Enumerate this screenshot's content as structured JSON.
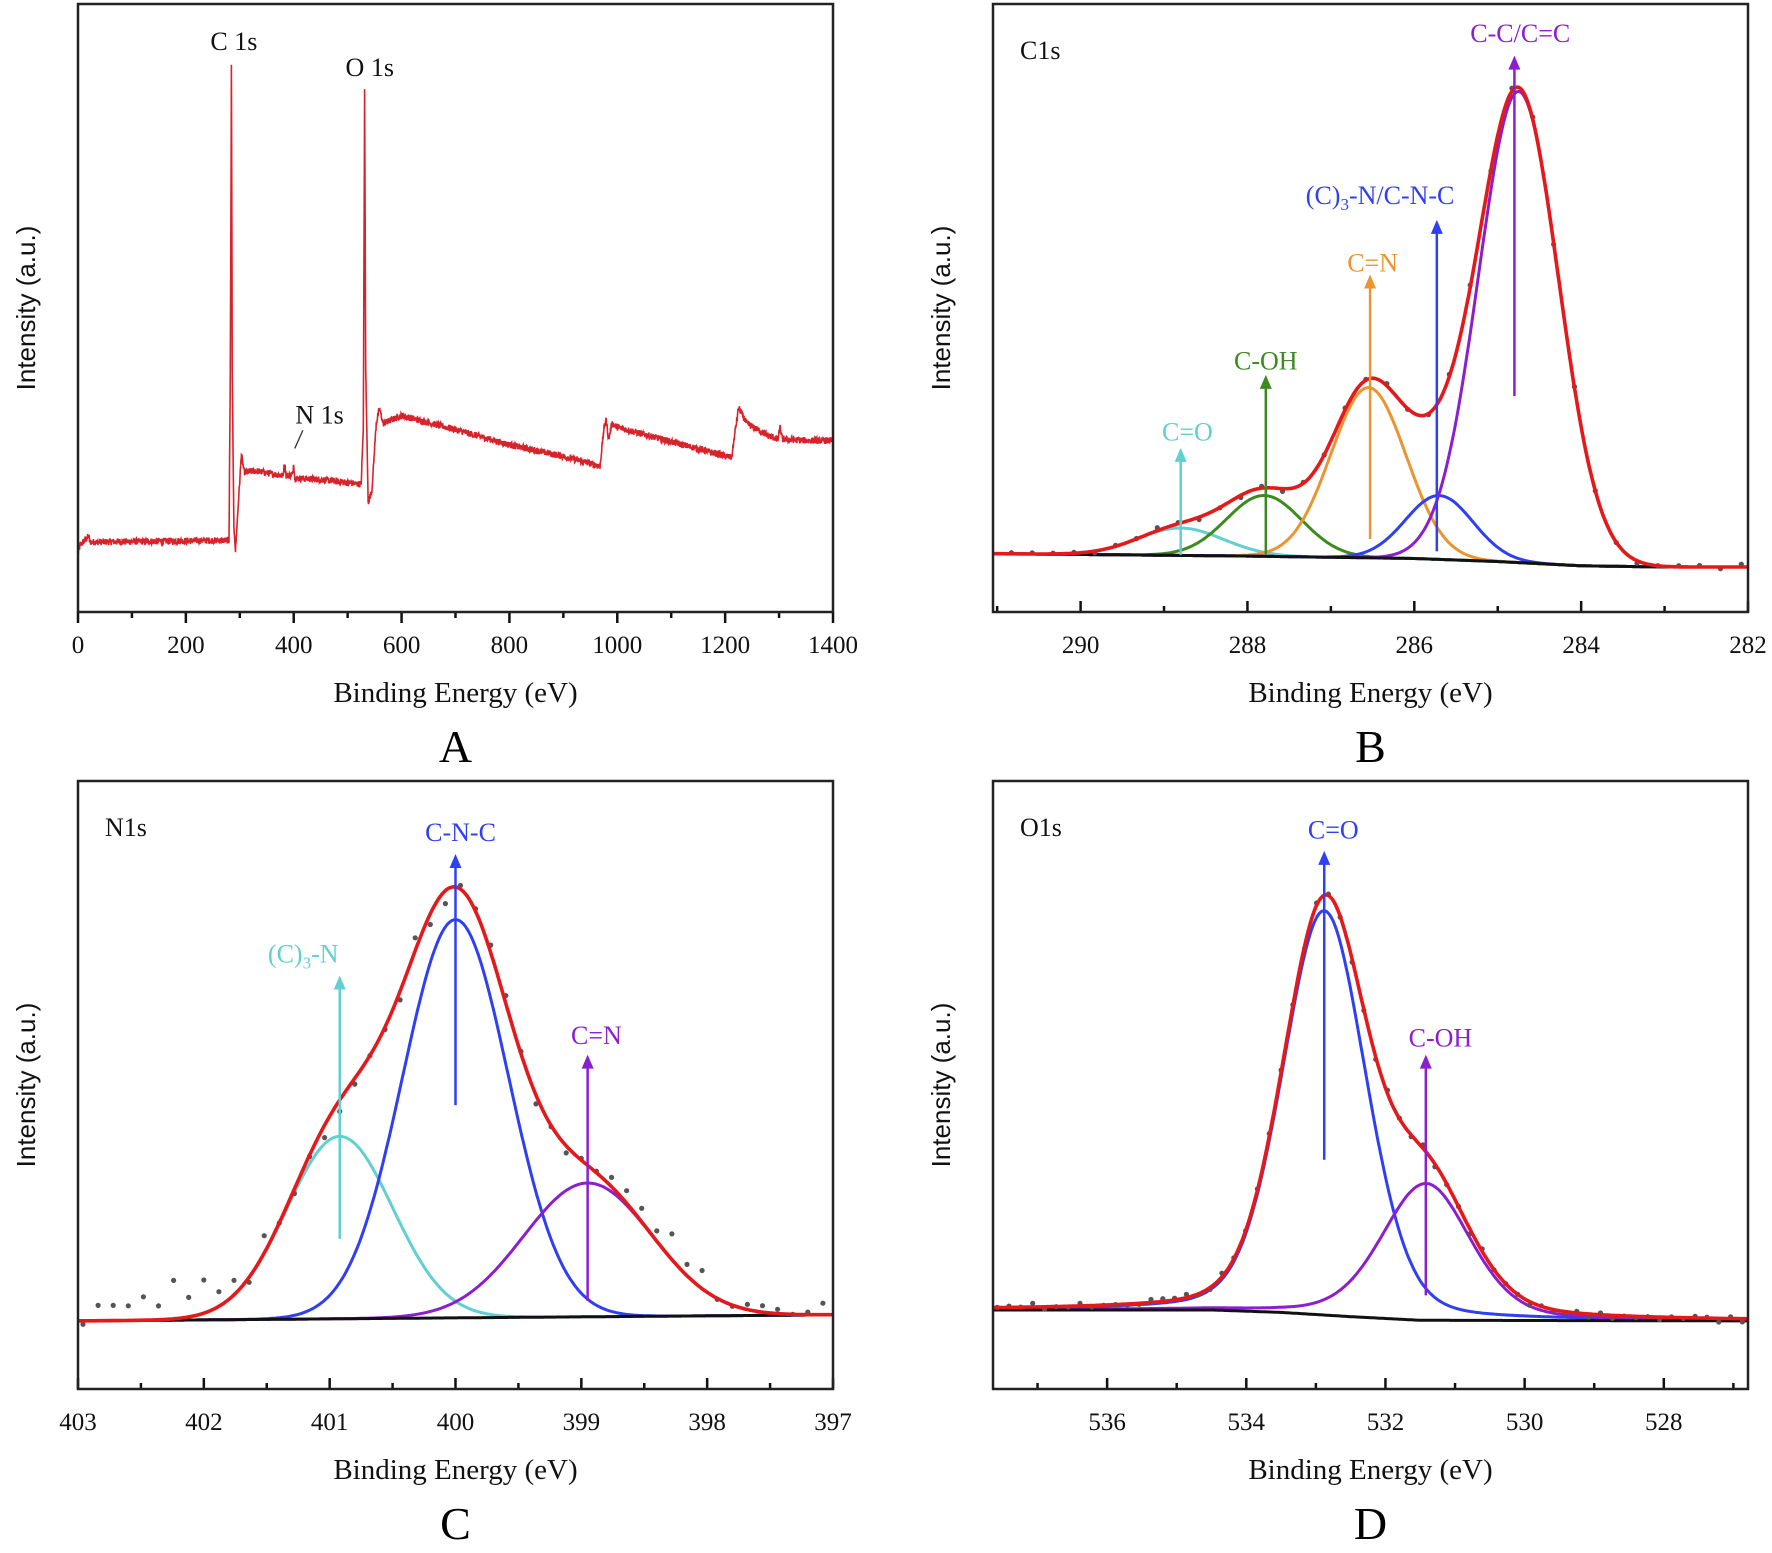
{
  "figure": {
    "panel_letters": [
      "A",
      "B",
      "C",
      "D"
    ],
    "colors": {
      "envelope": "#e3191c",
      "survey": "#d6232c",
      "baseline": "#111111",
      "data_points": "#555555",
      "cyan": "#62cfd0",
      "green": "#3d8a1e",
      "orange": "#ea9530",
      "blue": "#2f3ff2",
      "purple": "#8b1fcf"
    }
  },
  "chart_data": [
    {
      "panel": "A",
      "type": "line",
      "title": "",
      "xlabel": "Binding Energy (eV)",
      "ylabel": "Intensity (a.u.)",
      "xlim": [
        0,
        1400
      ],
      "ylim": [
        0,
        100
      ],
      "xticks": [
        0,
        200,
        400,
        600,
        800,
        1000,
        1200,
        1400
      ],
      "minor_step": 100,
      "grid": false,
      "series": [
        {
          "name": "Survey spectrum",
          "color_key": "survey",
          "keyframes": [
            [
              0,
              9.5
            ],
            [
              4,
              11
            ],
            [
              20,
              12.5
            ],
            [
              22,
              11.5
            ],
            [
              280,
              11.8
            ],
            [
              282.5,
              40
            ],
            [
              284.5,
              90
            ],
            [
              286,
              40
            ],
            [
              289,
              14
            ],
            [
              292,
              10
            ],
            [
              296,
              16
            ],
            [
              303,
              26
            ],
            [
              308,
              23
            ],
            [
              330,
              23.2
            ],
            [
              380,
              22.4
            ],
            [
              383,
              24.5
            ],
            [
              386,
              22.4
            ],
            [
              398,
              22.6
            ],
            [
              400,
              24.5
            ],
            [
              402,
              22
            ],
            [
              450,
              21.8
            ],
            [
              525,
              21
            ],
            [
              529,
              30
            ],
            [
              531.5,
              86
            ],
            [
              533.5,
              40
            ],
            [
              538,
              18
            ],
            [
              545,
              20
            ],
            [
              553,
              31
            ],
            [
              559,
              33.5
            ],
            [
              566,
              31
            ],
            [
              600,
              32.3
            ],
            [
              700,
              30
            ],
            [
              800,
              27.5
            ],
            [
              900,
              25.6
            ],
            [
              968,
              24
            ],
            [
              975,
              30
            ],
            [
              979,
              31.8
            ],
            [
              984,
              28.4
            ],
            [
              990,
              31
            ],
            [
              1000,
              30.4
            ],
            [
              1100,
              28
            ],
            [
              1212,
              25.4
            ],
            [
              1219,
              30
            ],
            [
              1225,
              33.6
            ],
            [
              1240,
              31
            ],
            [
              1280,
              29
            ],
            [
              1298,
              28.4
            ],
            [
              1302,
              30.4
            ],
            [
              1306,
              28.4
            ],
            [
              1350,
              28.2
            ]
          ]
        }
      ],
      "annotations": [
        {
          "text": "C 1s",
          "x": 289,
          "y": 93.9
        },
        {
          "text": "O 1s",
          "x": 541,
          "y": 89.6
        },
        {
          "text": "N 1s",
          "x": 448,
          "y": 32.5,
          "leader": [
            [
              417,
              29.9
            ],
            [
              402,
              26.9
            ]
          ]
        }
      ]
    },
    {
      "panel": "B",
      "type": "line",
      "title": "C1s",
      "xlabel": "Binding Energy (eV)",
      "ylabel": "Intensity (a.u.)",
      "xlim": [
        291.05,
        282
      ],
      "ylim": [
        0,
        100
      ],
      "xticks": [
        290,
        288,
        286,
        284,
        282
      ],
      "minor_step": 1,
      "grid": false,
      "baseline": [
        [
          291.05,
          9.6
        ],
        [
          288,
          9.2
        ],
        [
          286,
          8.8
        ],
        [
          285,
          8.3
        ],
        [
          284,
          7.6
        ],
        [
          283,
          7.4
        ],
        [
          282,
          7.4
        ]
      ],
      "components": [
        {
          "name": "C=O",
          "center": 288.8,
          "amplitude": 4.5,
          "fwhm": 1.2,
          "lorentz": 0,
          "color_key": "cyan"
        },
        {
          "name": "C-OH",
          "center": 287.8,
          "amplitude": 10,
          "fwhm": 1.06,
          "lorentz": 0,
          "color_key": "green"
        },
        {
          "name": "C=N",
          "center": 286.55,
          "amplitude": 28,
          "fwhm": 1.06,
          "lorentz": 0,
          "color_key": "orange"
        },
        {
          "name": "(C)3-N/C-N-C",
          "center": 285.7,
          "amplitude": 10.5,
          "fwhm": 0.95,
          "lorentz": 0,
          "color_key": "blue"
        },
        {
          "name": "C-C/C=C",
          "center": 284.75,
          "amplitude": 77.5,
          "fwhm": 1.13,
          "lorentz": 0,
          "color_key": "purple"
        }
      ],
      "data_step": 0.25,
      "noise": 0.5,
      "annotations": [
        {
          "label_parts": [
            {
              "t": "C=O"
            }
          ],
          "x": 288.72,
          "y": 29.7,
          "arrow": [
            288.8,
            9.4,
            27.0
          ],
          "color_key": "cyan"
        },
        {
          "label_parts": [
            {
              "t": "C-OH"
            }
          ],
          "x": 287.78,
          "y": 41.4,
          "arrow": [
            287.78,
            9.5,
            39.0
          ],
          "color_key": "green"
        },
        {
          "label_parts": [
            {
              "t": "C=N"
            }
          ],
          "x": 286.5,
          "y": 57.5,
          "arrow": [
            286.53,
            12,
            55.5
          ],
          "color_key": "orange"
        },
        {
          "label_parts": [
            {
              "t": "(C)"
            },
            {
              "t": "3",
              "sub": true
            },
            {
              "t": "-N/C-N-C"
            }
          ],
          "x": 286.41,
          "y": 68.6,
          "arrow": [
            285.73,
            10,
            64.5
          ],
          "color_key": "blue"
        },
        {
          "label_parts": [
            {
              "t": "C-C/C=C"
            }
          ],
          "x": 284.73,
          "y": 95.2,
          "arrow": [
            284.8,
            35.5,
            91.5
          ],
          "color_key": "purple"
        }
      ]
    },
    {
      "panel": "C",
      "type": "line",
      "title": "N1s",
      "xlabel": "Binding Energy (eV)",
      "ylabel": "Intensity (a.u.)",
      "xlim": [
        403,
        397
      ],
      "ylim": [
        0,
        100
      ],
      "xticks": [
        403,
        402,
        401,
        400,
        399,
        398,
        397
      ],
      "minor_step": 0.5,
      "grid": false,
      "baseline": [
        [
          403,
          11.2
        ],
        [
          397,
          12.2
        ]
      ],
      "components": [
        {
          "name": "(C)3-N",
          "center": 400.92,
          "amplitude": 30,
          "fwhm": 0.99,
          "lorentz": 0,
          "color_key": "cyan"
        },
        {
          "name": "C-N-C",
          "center": 400.0,
          "amplitude": 65.5,
          "fwhm": 0.99,
          "lorentz": 0,
          "color_key": "blue"
        },
        {
          "name": "C=N",
          "center": 398.95,
          "amplitude": 22,
          "fwhm": 1.2,
          "lorentz": 0,
          "color_key": "purple"
        }
      ],
      "data_step": 0.12,
      "noise": 2.2,
      "annotations": [
        {
          "label_parts": [
            {
              "t": "(C)"
            },
            {
              "t": "3",
              "sub": true
            },
            {
              "t": "-N"
            }
          ],
          "x": 401.21,
          "y": 71.6,
          "arrow": [
            400.92,
            24.7,
            68.0
          ],
          "color_key": "cyan"
        },
        {
          "label_parts": [
            {
              "t": "C-N-C"
            }
          ],
          "x": 399.96,
          "y": 91.6,
          "arrow": [
            400.0,
            46.7,
            88.0
          ],
          "color_key": "blue"
        },
        {
          "label_parts": [
            {
              "t": "C=N"
            }
          ],
          "x": 398.88,
          "y": 58.2,
          "arrow": [
            398.95,
            14.5,
            55.0
          ],
          "color_key": "purple"
        }
      ]
    },
    {
      "panel": "D",
      "type": "line",
      "title": "O1s",
      "xlabel": "Binding Energy (eV)",
      "ylabel": "Intensity (a.u.)",
      "xlim": [
        537.64,
        526.79
      ],
      "ylim": [
        0,
        100
      ],
      "xticks": [
        536,
        534,
        532,
        530,
        528
      ],
      "minor_step": 1,
      "grid": false,
      "baseline": [
        [
          537.64,
          13
        ],
        [
          534.5,
          13
        ],
        [
          533.5,
          12.6
        ],
        [
          532.5,
          11.9
        ],
        [
          531.5,
          11.3
        ],
        [
          526.79,
          11.2
        ]
      ],
      "components": [
        {
          "name": "C=O",
          "center": 532.88,
          "amplitude": 66.5,
          "fwhm": 1.41,
          "lorentz": 0.2,
          "color_key": "blue"
        },
        {
          "name": "C-OH",
          "center": 531.42,
          "amplitude": 22.5,
          "fwhm": 1.5,
          "lorentz": 0.3,
          "color_key": "purple"
        }
      ],
      "data_step": 0.17,
      "noise": 0.6,
      "annotations": [
        {
          "label_parts": [
            {
              "t": "C=O"
            }
          ],
          "x": 532.75,
          "y": 92,
          "arrow": [
            532.88,
            37.7,
            88.5
          ],
          "color_key": "blue"
        },
        {
          "label_parts": [
            {
              "t": "C-OH"
            }
          ],
          "x": 531.21,
          "y": 57.8,
          "arrow": [
            531.42,
            15.4,
            55.0
          ],
          "color_key": "purple"
        }
      ]
    }
  ]
}
